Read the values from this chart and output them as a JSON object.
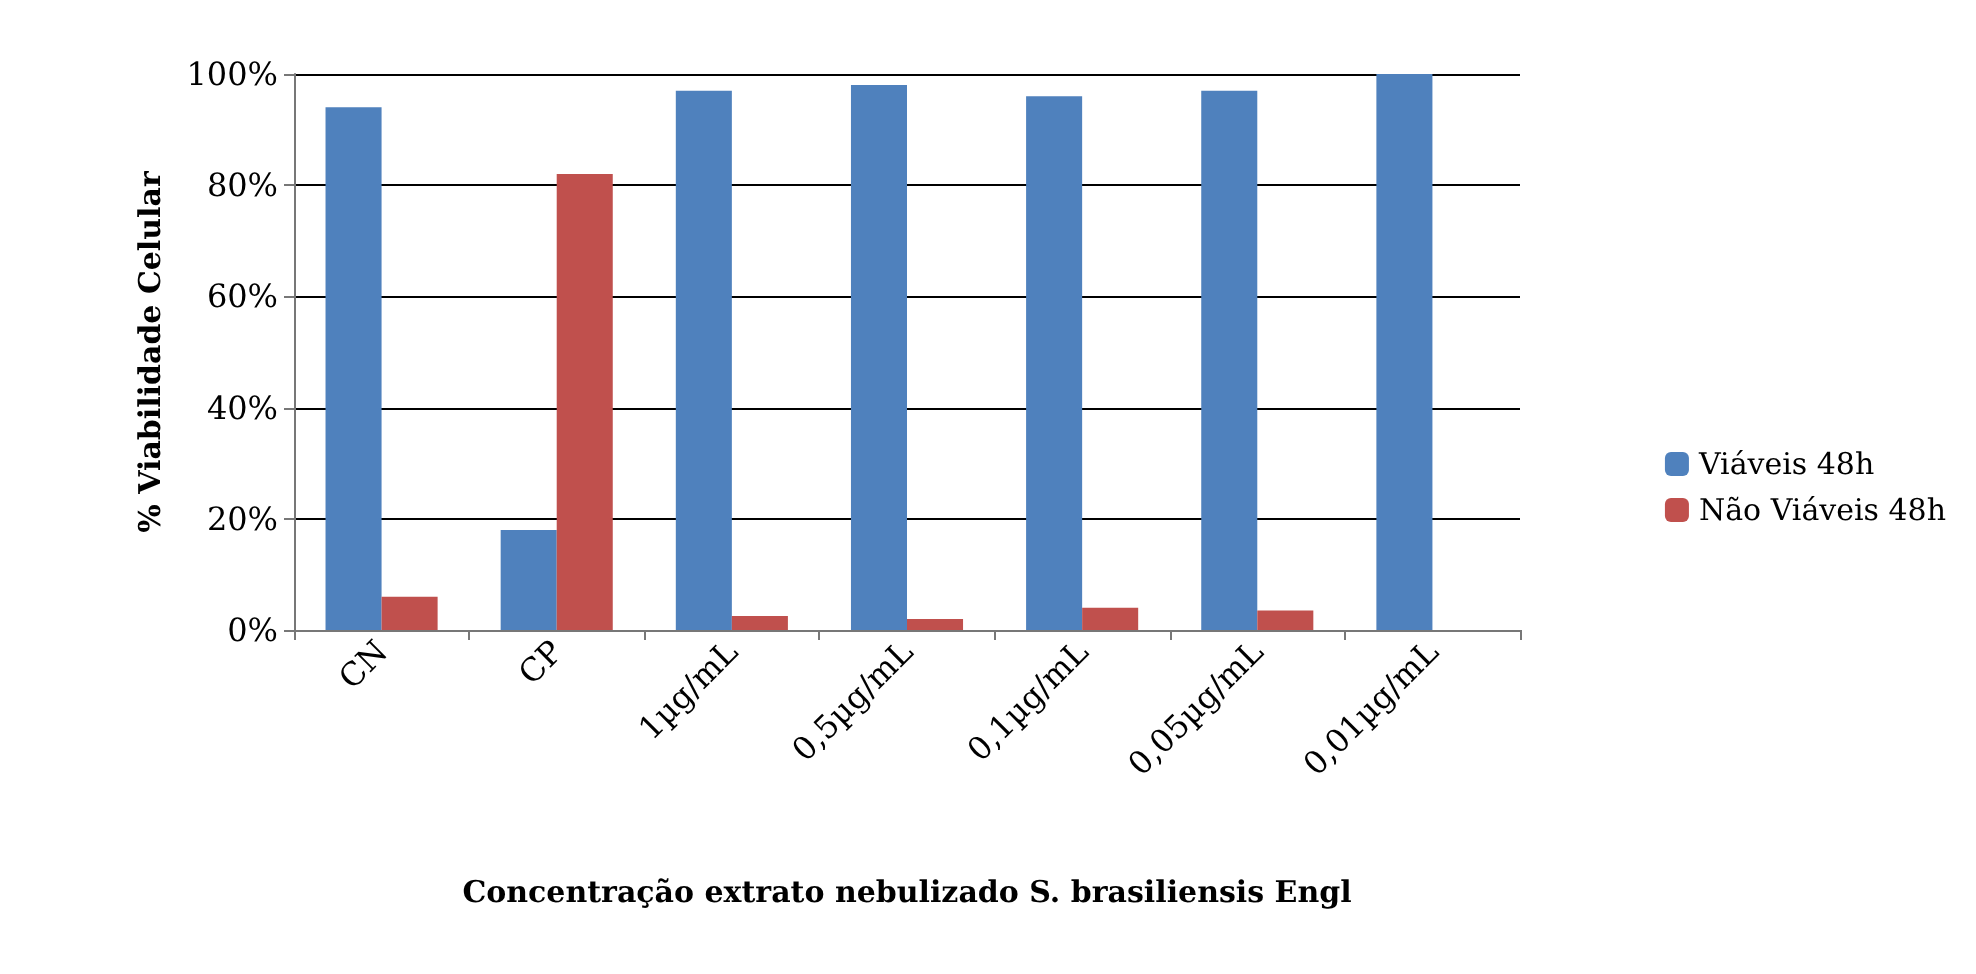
{
  "chart_data": {
    "type": "bar",
    "xlabel": "Concentração extrato nebulizado S. brasiliensis Engl",
    "ylabel": "% Viabilidade Celular",
    "categories": [
      "CN",
      "CP",
      "1µg/mL",
      "0,5µg/mL",
      "0,1µg/mL",
      "0,05µg/mL",
      "0,01µg/mL"
    ],
    "series": [
      {
        "name": "Viáveis 48h",
        "color": "#4f81bd",
        "values": [
          94,
          18,
          97,
          98,
          96,
          97,
          100
        ]
      },
      {
        "name": "Não Viáveis 48h",
        "color": "#c0504d",
        "values": [
          6,
          82,
          2.5,
          2,
          4,
          3.5,
          0
        ]
      }
    ],
    "ylim": [
      0,
      100
    ],
    "yticks": [
      {
        "value": 0,
        "label": "0%"
      },
      {
        "value": 20,
        "label": "20%"
      },
      {
        "value": 40,
        "label": "40%"
      },
      {
        "value": 60,
        "label": "60%"
      },
      {
        "value": 80,
        "label": "80%"
      },
      {
        "value": 100,
        "label": "100%"
      }
    ],
    "grid": "y",
    "legend": "right"
  }
}
